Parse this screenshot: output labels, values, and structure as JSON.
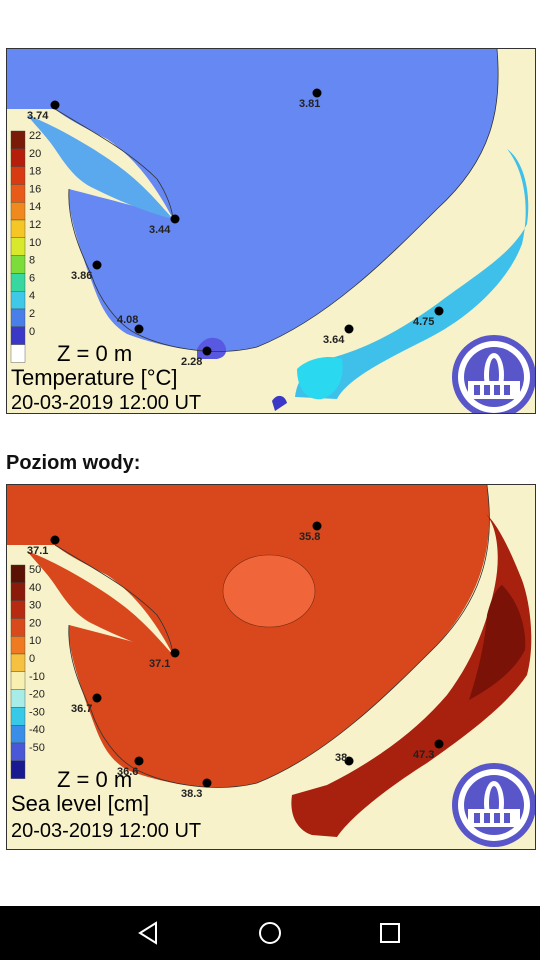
{
  "temperature_map": {
    "markers": [
      {
        "value": "3.74"
      },
      {
        "value": "3.81"
      },
      {
        "value": "3.44"
      },
      {
        "value": "3.86"
      },
      {
        "value": "4.08"
      },
      {
        "value": "2.28"
      },
      {
        "value": "3.64"
      },
      {
        "value": "4.75"
      }
    ],
    "legend": [
      "22",
      "20",
      "18",
      "16",
      "14",
      "12",
      "10",
      "8",
      "6",
      "4",
      "2",
      "0"
    ],
    "legend_colors": [
      "#7a1a08",
      "#b51e0a",
      "#d83a12",
      "#e85a18",
      "#f08a1e",
      "#f6c627",
      "#d8e82a",
      "#7cdc3a",
      "#36d8a0",
      "#3fc8e8",
      "#4a7ee8",
      "#3b38c8",
      "#ffffff"
    ],
    "depth_label": "Z = 0 m",
    "quantity": "Temperature [°C]",
    "timestamp": "20-03-2019 12:00 UT"
  },
  "section_heading": "Poziom wody:",
  "sea_level_map": {
    "markers": [
      {
        "value": "37.1"
      },
      {
        "value": "35.8"
      },
      {
        "value": "37.1"
      },
      {
        "value": "36.7"
      },
      {
        "value": "36.6"
      },
      {
        "value": "38.3"
      },
      {
        "value": "38"
      },
      {
        "value": "47.3"
      }
    ],
    "legend": [
      "50",
      "40",
      "30",
      "20",
      "10",
      "0",
      "-10",
      "-20",
      "-30",
      "-40",
      "-50"
    ],
    "legend_colors": [
      "#5a1205",
      "#8a1a0a",
      "#b52a10",
      "#d84a1c",
      "#f07a22",
      "#f6c040",
      "#f8f0b0",
      "#a8ece8",
      "#38c8e8",
      "#3b8ee8",
      "#4a58d8",
      "#1a1a90"
    ],
    "depth_label": "Z = 0 m",
    "quantity": "Sea level [cm]",
    "timestamp": "20-03-2019 12:00 UT"
  },
  "nav": {
    "back": "back-icon",
    "home": "home-icon",
    "recents": "recents-icon"
  }
}
